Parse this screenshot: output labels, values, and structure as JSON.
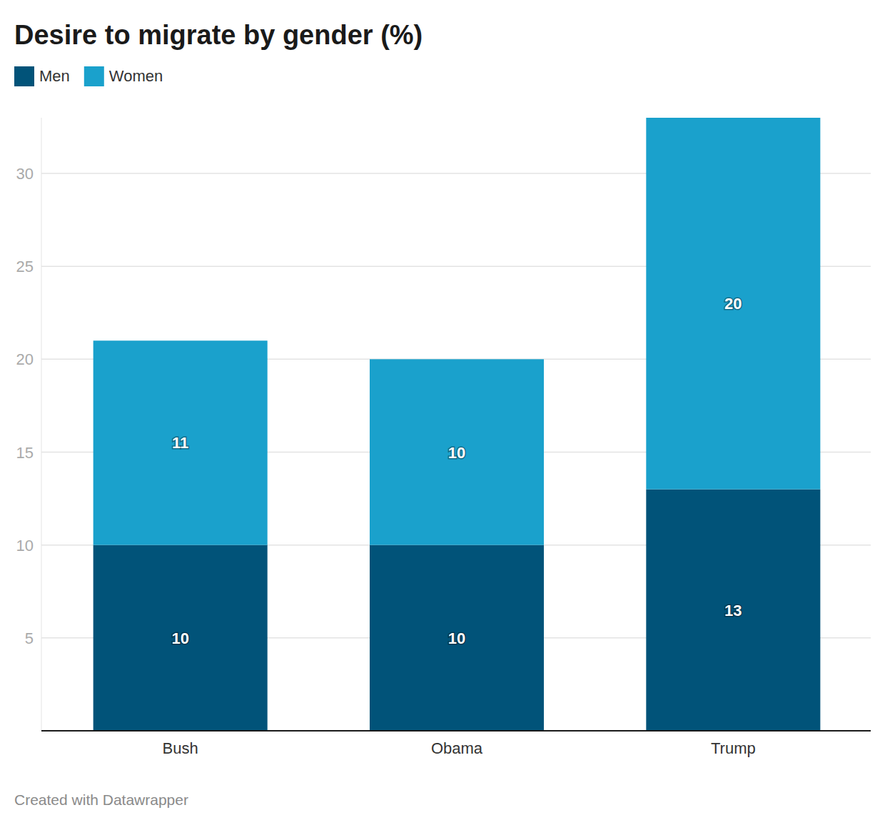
{
  "chart_data": {
    "type": "bar",
    "title": "Desire to migrate by gender (%)",
    "categories": [
      "Bush",
      "Obama",
      "Trump"
    ],
    "series": [
      {
        "name": "Men",
        "color": "#015379",
        "values": [
          10,
          10,
          13
        ]
      },
      {
        "name": "Women",
        "color": "#1aa1cc",
        "values": [
          11,
          10,
          20
        ]
      }
    ],
    "stacked": true,
    "data_labels": true,
    "grid": true,
    "legend": "top-left",
    "ylim": [
      0,
      33
    ],
    "yticks": [
      5,
      10,
      15,
      20,
      25,
      30
    ],
    "source": "Created with Datawrapper"
  }
}
